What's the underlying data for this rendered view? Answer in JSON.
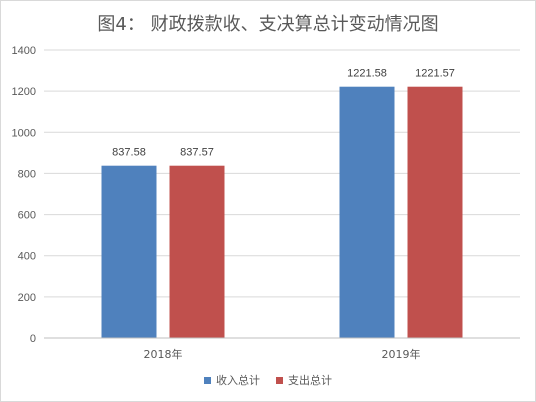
{
  "chart_data": {
    "type": "bar",
    "title": "图4：   财政拨款收、支决算总计变动情况图",
    "categories": [
      "2018年",
      "2019年"
    ],
    "series": [
      {
        "name": "收入总计",
        "color": "#4f81bd",
        "values": [
          837.58,
          1221.58
        ],
        "labels": [
          "837.58",
          "1221.58"
        ]
      },
      {
        "name": "支出总计",
        "color": "#c0504d",
        "values": [
          837.57,
          1221.57
        ],
        "labels": [
          "837.57",
          "1221.57"
        ]
      }
    ],
    "ylim": [
      0,
      1400
    ],
    "yticks": [
      "0",
      "200",
      "400",
      "600",
      "800",
      "1000",
      "1200",
      "1400"
    ],
    "ytick_values": [
      0,
      200,
      400,
      600,
      800,
      1000,
      1200,
      1400
    ],
    "grid": true,
    "legend_position": "bottom"
  }
}
